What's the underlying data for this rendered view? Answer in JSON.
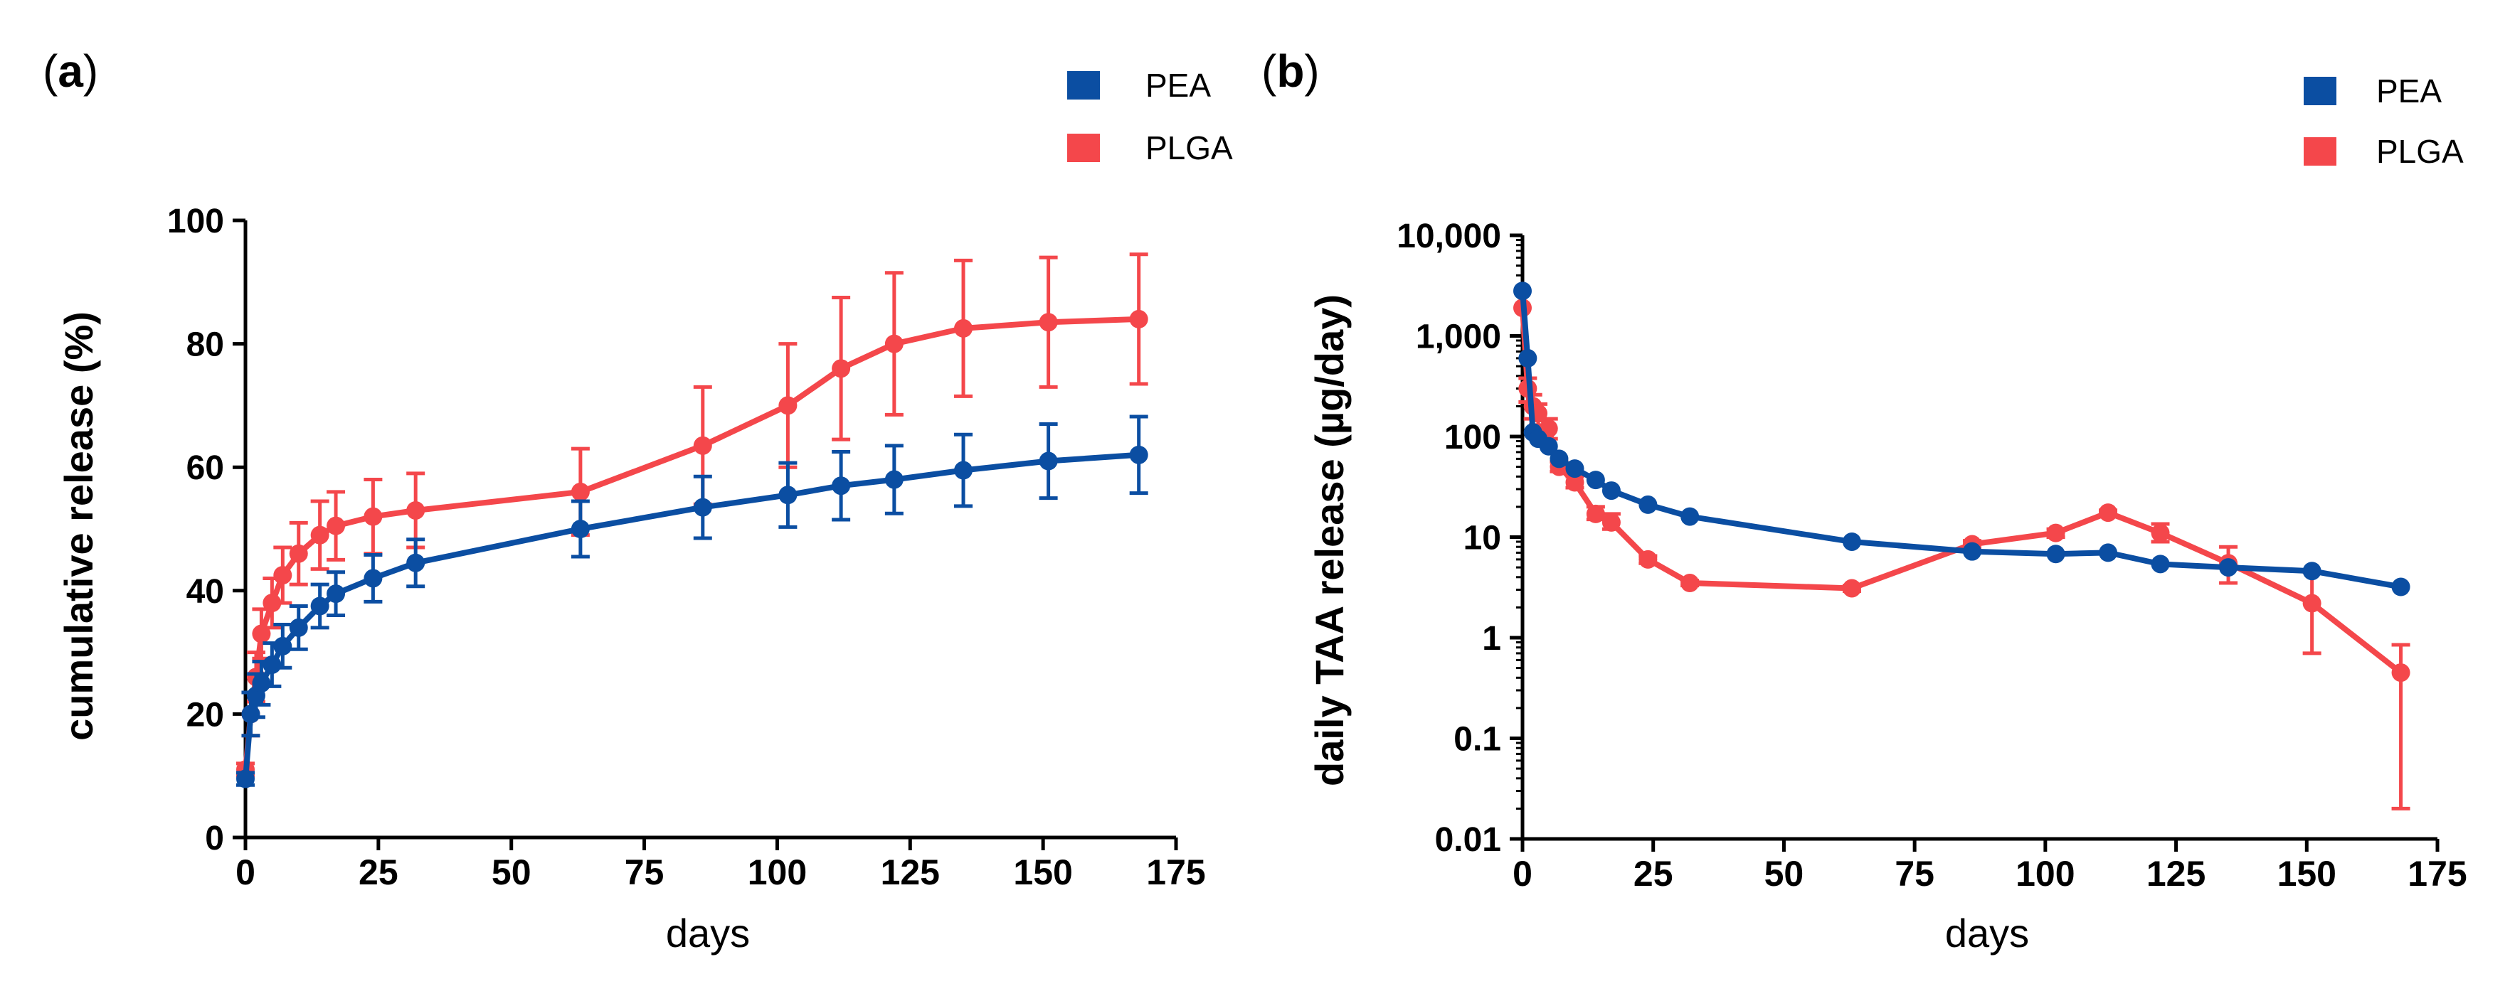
{
  "colors": {
    "PEA": "#0b4ea2",
    "PLGA": "#f4474b"
  },
  "chart_data": [
    {
      "panel": "(a)",
      "panel_letter": "a",
      "type": "line",
      "scale": "linear",
      "xlabel": "days",
      "ylabel": "cumulative release (%)",
      "xlim": [
        0,
        175
      ],
      "ylim": [
        0,
        100
      ],
      "xticks": [
        0,
        25,
        50,
        75,
        100,
        125,
        150,
        175
      ],
      "xtick_labels": [
        "0",
        "25",
        "50",
        "75",
        "100",
        "125",
        "150",
        "175"
      ],
      "yticks": [
        0,
        20,
        40,
        60,
        80,
        100
      ],
      "ytick_labels": [
        "0",
        "20",
        "40",
        "60",
        "80",
        "100"
      ],
      "legend": [
        "PEA",
        "PLGA"
      ],
      "series": [
        {
          "name": "PEA",
          "x": [
            0,
            1,
            2,
            3,
            5,
            7,
            10,
            14,
            17,
            24,
            32,
            63,
            86,
            102,
            112,
            122,
            135,
            151,
            168
          ],
          "y": [
            9.5,
            20,
            23,
            25,
            28,
            31,
            34,
            37.5,
            39.5,
            42,
            44.5,
            50,
            53.5,
            55.5,
            57,
            58,
            59.5,
            61,
            62
          ],
          "err": [
            1,
            3.5,
            3.5,
            3.5,
            3.5,
            3.5,
            3.5,
            3.5,
            3.5,
            3.8,
            3.8,
            4.5,
            5,
            5.2,
            5.5,
            5.5,
            5.8,
            6,
            6.2
          ]
        },
        {
          "name": "PLGA",
          "x": [
            0,
            1,
            2,
            3,
            5,
            7,
            10,
            14,
            17,
            24,
            32,
            63,
            86,
            102,
            112,
            122,
            135,
            151,
            168
          ],
          "y": [
            11,
            20,
            26,
            33,
            38,
            42.5,
            46,
            49,
            50.5,
            52,
            53,
            56,
            63.5,
            70,
            76,
            80,
            82.5,
            83.5,
            84
          ],
          "err": [
            1,
            3.5,
            4,
            4,
            4,
            4.5,
            5,
            5.5,
            5.5,
            6,
            6,
            7,
            9.5,
            10,
            11.5,
            11.5,
            11,
            10.5,
            10.5
          ]
        }
      ]
    },
    {
      "panel": "(b)",
      "panel_letter": "b",
      "type": "line",
      "scale": "log",
      "xlabel": "days",
      "ylabel": "daily TAA release (µg/day)",
      "xlim": [
        0,
        175
      ],
      "ylim": [
        0.01,
        10000
      ],
      "xticks": [
        0,
        25,
        50,
        75,
        100,
        125,
        150,
        175
      ],
      "xtick_labels": [
        "0",
        "25",
        "50",
        "75",
        "100",
        "125",
        "150",
        "175"
      ],
      "yticks": [
        0.01,
        0.1,
        1,
        10,
        100,
        1000,
        10000
      ],
      "ytick_labels": [
        "0.01",
        "0.1",
        "1",
        "10",
        "100",
        "1,000",
        "10,000"
      ],
      "legend": [
        "PEA",
        "PLGA"
      ],
      "series": [
        {
          "name": "PEA",
          "x": [
            0,
            1,
            2,
            3,
            5,
            7,
            10,
            14,
            17,
            24,
            32,
            63,
            86,
            102,
            112,
            122,
            135,
            151,
            168
          ],
          "y": [
            2800,
            600,
            110,
            95,
            80,
            60,
            48,
            37,
            29,
            21,
            16,
            9,
            7.2,
            6.8,
            7,
            5.4,
            5,
            4.6,
            3.2
          ],
          "err_low": [
            2800,
            600,
            110,
            95,
            80,
            60,
            48,
            37,
            29,
            21,
            16,
            9,
            7.2,
            6.8,
            7,
            5.4,
            5,
            4.6,
            3.2
          ],
          "err_high": [
            2800,
            600,
            110,
            95,
            80,
            60,
            48,
            37,
            29,
            21,
            16,
            9,
            7.2,
            6.8,
            7,
            5.4,
            5,
            4.6,
            3.2
          ]
        },
        {
          "name": "PLGA",
          "x": [
            0,
            1,
            2,
            3,
            5,
            7,
            10,
            14,
            17,
            24,
            32,
            63,
            86,
            102,
            112,
            122,
            135,
            151,
            168
          ],
          "y": [
            1900,
            300,
            200,
            170,
            120,
            50,
            35,
            17,
            14,
            6,
            3.5,
            3.1,
            8.5,
            11,
            17.5,
            11,
            5.5,
            2.2,
            0.45
          ],
          "err_low": [
            1900,
            220,
            150,
            130,
            95,
            45,
            31,
            15,
            12,
            5.5,
            3.3,
            2.9,
            7.8,
            10,
            16.5,
            9,
            3.5,
            0.7,
            0.02
          ],
          "err_high": [
            1900,
            380,
            260,
            210,
            150,
            56,
            40,
            20,
            17,
            6.5,
            3.7,
            3.3,
            9.2,
            12,
            18.5,
            13.5,
            8,
            4.5,
            0.85
          ]
        }
      ]
    }
  ]
}
